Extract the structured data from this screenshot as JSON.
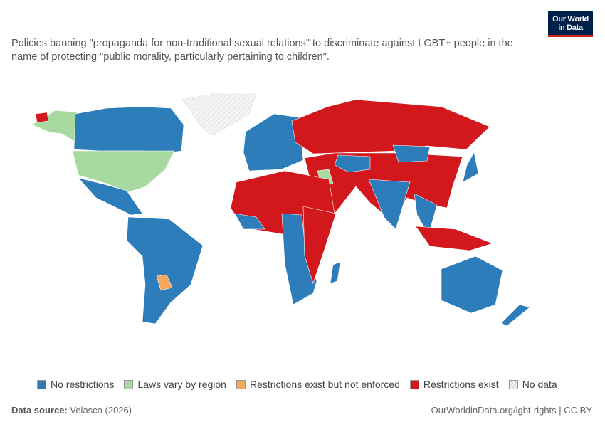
{
  "header": {
    "logo": [
      "Our World",
      "in Data"
    ],
    "title": "Policies banning \"propaganda for non-traditional sexual relations\" to discriminate against LGBT+ people in the name of protecting \"public morality, particularly pertaining to children\"."
  },
  "legend": [
    {
      "label": "No restrictions",
      "color": "#2e7dbb"
    },
    {
      "label": "Laws vary by region",
      "color": "#a8d9a0"
    },
    {
      "label": "Restrictions exist but not enforced",
      "color": "#f6a95e"
    },
    {
      "label": "Restrictions exist",
      "color": "#d2181d"
    },
    {
      "label": "No data",
      "color": "#f2f2f2"
    }
  ],
  "footer": {
    "source_label": "Data source:",
    "source": "Velasco (2026)",
    "url": "OurWorldinData.org/lgbt-rights | CC BY"
  }
}
